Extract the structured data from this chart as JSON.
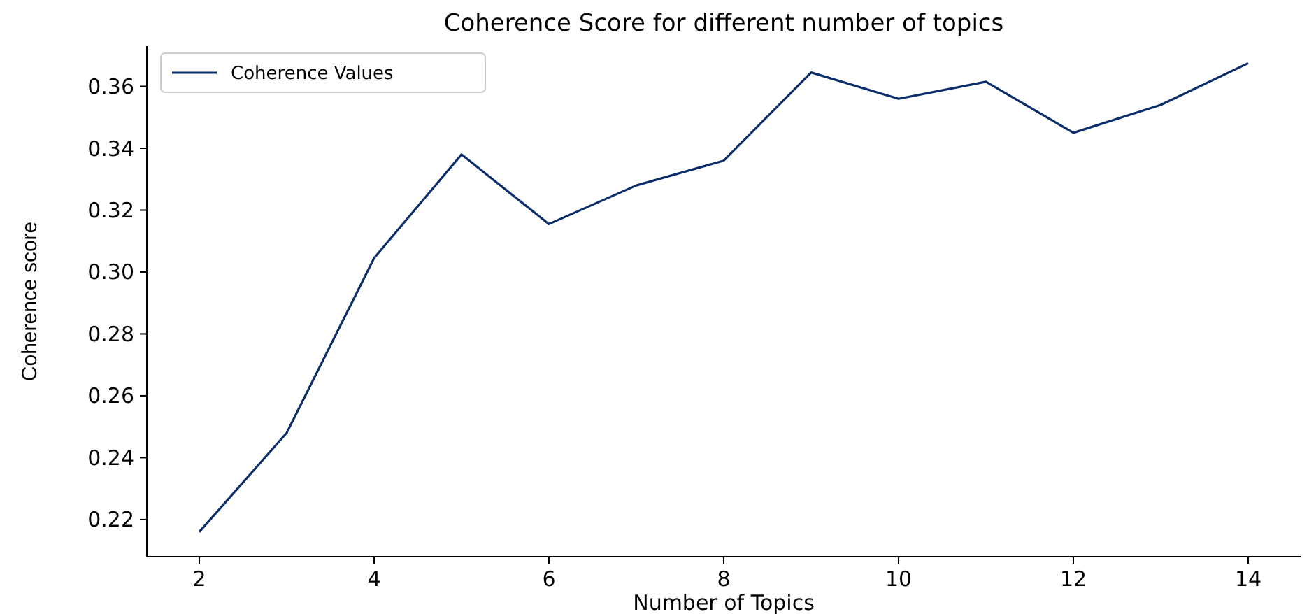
{
  "chart_data": {
    "type": "line",
    "title": "Coherence Score for different number of topics",
    "xlabel": "Number of Topics",
    "ylabel": "Coherence score",
    "x": [
      2,
      3,
      4,
      5,
      6,
      7,
      8,
      9,
      10,
      11,
      12,
      13,
      14
    ],
    "series": [
      {
        "name": "Coherence Values",
        "color": "#0b2e6b",
        "values": [
          0.216,
          0.248,
          0.3045,
          0.338,
          0.3155,
          0.328,
          0.336,
          0.3645,
          0.356,
          0.3615,
          0.345,
          0.354,
          0.3675
        ]
      }
    ],
    "xlim": [
      1.4,
      14.6
    ],
    "xticks": [
      2,
      4,
      6,
      8,
      10,
      12,
      14
    ],
    "ylim": [
      0.208,
      0.373
    ],
    "yticks": [
      0.22,
      0.24,
      0.26,
      0.28,
      {
        "value": 0.3,
        "label": "0.30"
      },
      0.32,
      0.34,
      0.36
    ],
    "grid": false,
    "legend": "top left"
  }
}
